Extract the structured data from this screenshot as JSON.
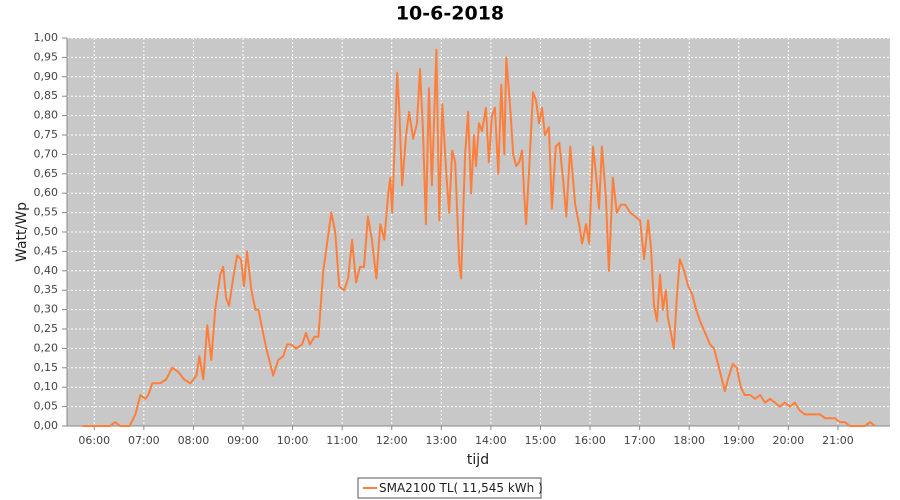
{
  "chart_data": {
    "type": "line",
    "title": "10-6-2018",
    "x_label": "tijd",
    "y_label": "Watt/Wp",
    "grid": true,
    "legend": "bottom",
    "xlim": [
      5.45,
      22.05
    ],
    "ylim": [
      0,
      1
    ],
    "xticks": [
      {
        "value": 6,
        "label": "06:00"
      },
      {
        "value": 7,
        "label": "07:00"
      },
      {
        "value": 8,
        "label": "08:00"
      },
      {
        "value": 9,
        "label": "09:00"
      },
      {
        "value": 10,
        "label": "10:00"
      },
      {
        "value": 11,
        "label": "11:00"
      },
      {
        "value": 12,
        "label": "12:00"
      },
      {
        "value": 13,
        "label": "13:00"
      },
      {
        "value": 14,
        "label": "14:00"
      },
      {
        "value": 15,
        "label": "15:00"
      },
      {
        "value": 16,
        "label": "16:00"
      },
      {
        "value": 17,
        "label": "17:00"
      },
      {
        "value": 18,
        "label": "18:00"
      },
      {
        "value": 19,
        "label": "19:00"
      },
      {
        "value": 20,
        "label": "20:00"
      },
      {
        "value": 21,
        "label": "21:00"
      }
    ],
    "yticks": [
      {
        "value": 0,
        "label": "0,00"
      },
      {
        "value": 0.05,
        "label": "0,05"
      },
      {
        "value": 0.1,
        "label": "0,10"
      },
      {
        "value": 0.15,
        "label": "0,15"
      },
      {
        "value": 0.2,
        "label": "0,20"
      },
      {
        "value": 0.25,
        "label": "0,25"
      },
      {
        "value": 0.3,
        "label": "0,30"
      },
      {
        "value": 0.35,
        "label": "0,35"
      },
      {
        "value": 0.4,
        "label": "0,40"
      },
      {
        "value": 0.45,
        "label": "0,45"
      },
      {
        "value": 0.5,
        "label": "0,50"
      },
      {
        "value": 0.55,
        "label": "0,55"
      },
      {
        "value": 0.6,
        "label": "0,60"
      },
      {
        "value": 0.65,
        "label": "0,65"
      },
      {
        "value": 0.7,
        "label": "0,70"
      },
      {
        "value": 0.75,
        "label": "0,75"
      },
      {
        "value": 0.8,
        "label": "0,80"
      },
      {
        "value": 0.85,
        "label": "0,85"
      },
      {
        "value": 0.9,
        "label": "0,90"
      },
      {
        "value": 0.95,
        "label": "0,95"
      },
      {
        "value": 1,
        "label": "1,00"
      }
    ],
    "x": [
      5.76,
      6.32,
      6.42,
      6.52,
      6.71,
      6.83,
      6.93,
      7.03,
      7.09,
      7.17,
      7.33,
      7.45,
      7.57,
      7.69,
      7.81,
      7.94,
      8.06,
      8.12,
      8.2,
      8.28,
      8.36,
      8.44,
      8.54,
      8.6,
      8.66,
      8.72,
      8.8,
      8.88,
      8.96,
      9.02,
      9.08,
      9.17,
      9.25,
      9.31,
      9.39,
      9.47,
      9.61,
      9.71,
      9.81,
      9.89,
      9.97,
      10.07,
      10.19,
      10.27,
      10.35,
      10.44,
      10.52,
      10.62,
      10.78,
      10.86,
      10.94,
      11.04,
      11.12,
      11.2,
      11.28,
      11.36,
      11.44,
      11.52,
      11.6,
      11.69,
      11.77,
      11.85,
      11.93,
      11.97,
      12.01,
      12.11,
      12.15,
      12.21,
      12.29,
      12.35,
      12.43,
      12.51,
      12.57,
      12.63,
      12.69,
      12.75,
      12.81,
      12.9,
      12.96,
      13.02,
      13.1,
      13.16,
      13.22,
      13.28,
      13.36,
      13.4,
      13.48,
      13.54,
      13.6,
      13.66,
      13.7,
      13.76,
      13.82,
      13.9,
      13.96,
      14.02,
      14.08,
      14.15,
      14.21,
      14.27,
      14.31,
      14.39,
      14.45,
      14.51,
      14.57,
      14.63,
      14.67,
      14.71,
      14.77,
      14.85,
      14.91,
      14.97,
      15.03,
      15.09,
      15.17,
      15.23,
      15.31,
      15.38,
      15.46,
      15.52,
      15.6,
      15.7,
      15.78,
      15.84,
      15.92,
      15.98,
      16.06,
      16.12,
      16.18,
      16.24,
      16.32,
      16.38,
      16.46,
      16.54,
      16.62,
      16.71,
      16.81,
      16.91,
      17.01,
      17.09,
      17.17,
      17.23,
      17.29,
      17.35,
      17.41,
      17.47,
      17.53,
      17.57,
      17.63,
      17.69,
      17.75,
      17.81,
      17.9,
      17.98,
      18.06,
      18.14,
      18.22,
      18.32,
      18.42,
      18.5,
      18.58,
      18.66,
      18.72,
      18.78,
      18.88,
      18.96,
      19.04,
      19.12,
      19.23,
      19.33,
      19.43,
      19.53,
      19.63,
      19.73,
      19.83,
      19.93,
      20.03,
      20.13,
      20.23,
      20.33,
      20.44,
      20.64,
      20.74,
      20.84,
      20.94,
      21.04,
      21.14,
      21.24,
      21.54,
      21.65,
      21.75
    ],
    "series": [
      {
        "name": "SMA2100 TL( 11,545 kWh )",
        "color": "#ff7f3a",
        "values": [
          0,
          0,
          0.01,
          0,
          0,
          0.03,
          0.08,
          0.07,
          0.08,
          0.11,
          0.11,
          0.12,
          0.15,
          0.14,
          0.12,
          0.11,
          0.13,
          0.18,
          0.12,
          0.26,
          0.17,
          0.3,
          0.39,
          0.41,
          0.33,
          0.31,
          0.38,
          0.44,
          0.43,
          0.36,
          0.45,
          0.35,
          0.3,
          0.3,
          0.25,
          0.2,
          0.13,
          0.17,
          0.18,
          0.21,
          0.21,
          0.2,
          0.21,
          0.24,
          0.21,
          0.23,
          0.23,
          0.4,
          0.55,
          0.5,
          0.36,
          0.35,
          0.38,
          0.48,
          0.37,
          0.41,
          0.41,
          0.54,
          0.48,
          0.38,
          0.52,
          0.48,
          0.6,
          0.64,
          0.55,
          0.91,
          0.82,
          0.62,
          0.75,
          0.81,
          0.74,
          0.78,
          0.92,
          0.76,
          0.52,
          0.87,
          0.62,
          0.97,
          0.53,
          0.83,
          0.65,
          0.55,
          0.71,
          0.68,
          0.42,
          0.38,
          0.7,
          0.81,
          0.6,
          0.75,
          0.67,
          0.78,
          0.76,
          0.82,
          0.68,
          0.8,
          0.82,
          0.65,
          0.88,
          0.7,
          0.95,
          0.82,
          0.7,
          0.67,
          0.68,
          0.71,
          0.6,
          0.52,
          0.66,
          0.86,
          0.84,
          0.78,
          0.82,
          0.75,
          0.77,
          0.56,
          0.72,
          0.73,
          0.63,
          0.54,
          0.72,
          0.57,
          0.52,
          0.47,
          0.52,
          0.47,
          0.72,
          0.65,
          0.56,
          0.72,
          0.59,
          0.4,
          0.64,
          0.55,
          0.57,
          0.57,
          0.55,
          0.54,
          0.53,
          0.43,
          0.53,
          0.46,
          0.31,
          0.27,
          0.39,
          0.3,
          0.35,
          0.28,
          0.24,
          0.2,
          0.33,
          0.43,
          0.4,
          0.36,
          0.34,
          0.3,
          0.27,
          0.24,
          0.21,
          0.2,
          0.16,
          0.12,
          0.09,
          0.12,
          0.16,
          0.15,
          0.1,
          0.08,
          0.08,
          0.07,
          0.08,
          0.06,
          0.07,
          0.06,
          0.05,
          0.06,
          0.05,
          0.06,
          0.04,
          0.03,
          0.03,
          0.03,
          0.02,
          0.02,
          0.02,
          0.01,
          0.01,
          0,
          0,
          0.01,
          0
        ]
      }
    ]
  }
}
